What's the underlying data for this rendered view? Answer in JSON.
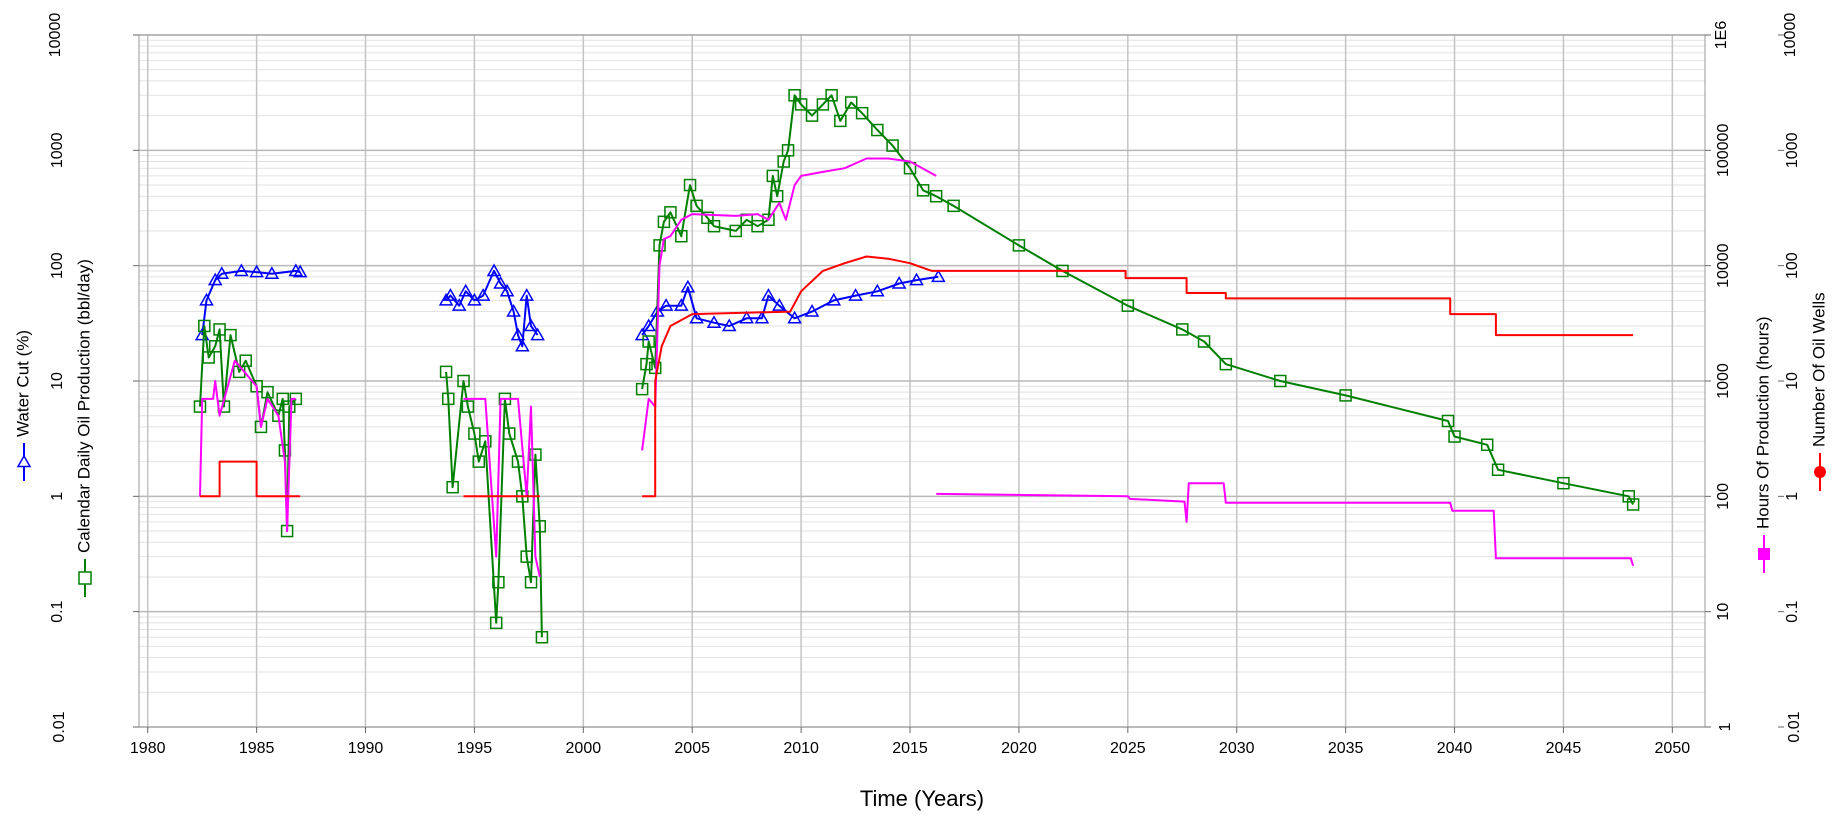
{
  "chart_data": {
    "type": "line",
    "log_scale": true,
    "grid": true,
    "xlabel": "Time (Years)",
    "xlim": [
      1979.6,
      2051.5
    ],
    "xticks": [
      1980,
      1985,
      1990,
      1995,
      2000,
      2005,
      2010,
      2015,
      2020,
      2025,
      2030,
      2035,
      2040,
      2045,
      2050
    ],
    "ylim": [
      0.01,
      10000
    ],
    "yticks": [
      0.01,
      0.1,
      1,
      10,
      100,
      1000,
      10000
    ],
    "y2lim": [
      1,
      1000000
    ],
    "y2ticks": [
      1,
      10,
      100,
      1000,
      10000,
      100000,
      {
        "value": 1000000,
        "label": "1E6"
      }
    ],
    "y3lim": [
      0.01,
      10000
    ],
    "y3ticks": [
      0.01,
      0.1,
      1,
      10,
      100,
      1000,
      10000
    ],
    "series": [
      {
        "name": "Water Cut (%)",
        "color": "#0000ff",
        "marker": "triangle-open",
        "marker_on_line": true,
        "axis": "y",
        "x": [
          1982.5,
          1982.7,
          1983.1,
          1983.4,
          1984.3,
          1985,
          1985.7,
          1986.8,
          1987,
          null,
          1993.7,
          1993.9,
          1994.3,
          1994.6,
          1995,
          1995.4,
          1995.9,
          1996.2,
          1996.5,
          1996.8,
          1997,
          1997.2,
          1997.4,
          1997.6,
          1997.9,
          null,
          2002.7,
          2003.0,
          2003.4,
          2003.8,
          2004.5,
          2004.8,
          2005.2,
          2006,
          2006.7,
          2007.5,
          2008.2,
          2008.5,
          2009,
          2009.7,
          2010.5,
          2011.5,
          2012.5,
          2013.5,
          2014.5,
          2015.3,
          2016.3
        ],
        "values": [
          25,
          50,
          75,
          85,
          90,
          88,
          85,
          90,
          88,
          null,
          50,
          55,
          45,
          60,
          50,
          55,
          90,
          70,
          60,
          40,
          25,
          20,
          55,
          30,
          25,
          null,
          25,
          30,
          40,
          45,
          45,
          65,
          35,
          32,
          30,
          35,
          35,
          55,
          45,
          35,
          40,
          50,
          55,
          60,
          70,
          75,
          80
        ]
      },
      {
        "name": "Calendar Daily Oil Production (bbl/day)",
        "color": "#008000",
        "marker": "square-open",
        "marker_on_line": true,
        "axis": "y",
        "x": [
          1982.4,
          1982.6,
          1982.8,
          1983.1,
          1983.3,
          1983.5,
          1983.8,
          1984.2,
          1984.5,
          1985,
          1985.2,
          1985.5,
          1986,
          1986.2,
          1986.3,
          1986.4,
          1986.5,
          1986.8,
          null,
          1993.7,
          1993.8,
          1994,
          1994.5,
          1994.7,
          1995,
          1995.2,
          1995.5,
          1996,
          1996.1,
          1996.4,
          1996.6,
          1997,
          1997.2,
          1997.4,
          1997.6,
          1997.8,
          1998,
          1998.1,
          null,
          2002.7,
          2002.9,
          2003,
          2003.3,
          2003.5,
          2003.7,
          2004,
          2004.5,
          2004.9,
          2005.2,
          2005.7,
          2006,
          2007,
          2007.5,
          2008,
          2008.5,
          2008.7,
          2008.9,
          2009.2,
          2009.4,
          2009.7,
          2010,
          2010.5,
          2011,
          2011.4,
          2011.8,
          2012.3,
          2012.8,
          2013.5,
          2014.2,
          2015,
          2015.6,
          2016.2,
          2017,
          2020,
          2022,
          2025,
          2027.5,
          2028.5,
          2029.5,
          2032,
          2035,
          2039.7,
          2040,
          2041.5,
          2042,
          2045,
          2048,
          2048.2
        ],
        "values": [
          6,
          30,
          16,
          20,
          28,
          6,
          25,
          12,
          15,
          9,
          4,
          8,
          5,
          7,
          2.5,
          0.5,
          6,
          7,
          null,
          12,
          7,
          1.2,
          10,
          6,
          3.5,
          2,
          3,
          0.08,
          0.18,
          7,
          3.5,
          2,
          1,
          0.3,
          0.18,
          2.3,
          0.55,
          0.06,
          null,
          8.5,
          14,
          22,
          13,
          150,
          240,
          290,
          180,
          500,
          330,
          260,
          220,
          200,
          250,
          220,
          250,
          600,
          400,
          800,
          1000,
          3000,
          2500,
          2000,
          2500,
          3000,
          1800,
          2600,
          2100,
          1500,
          1100,
          700,
          450,
          400,
          330,
          150,
          90,
          45,
          28,
          22,
          14,
          10,
          7.5,
          4.5,
          3.3,
          2.8,
          1.7,
          1.3,
          1.0,
          0.85
        ]
      },
      {
        "name": "Hours Of Production (hours)",
        "color": "#ff00ff",
        "marker": "square-filled",
        "marker_on_line": false,
        "axis": "y2",
        "x": [
          1982.4,
          1982.5,
          1983,
          1983.1,
          1983.3,
          1984,
          1985,
          1985.2,
          1985.5,
          1986,
          1986.3,
          1986.4,
          1986.6,
          1986.8,
          null,
          1994.5,
          1995.5,
          1996,
          1996.2,
          1997,
          1997.4,
          1997.6,
          1997.8,
          1998,
          null,
          2002.7,
          2003,
          2003.3,
          2003.5,
          2003.7,
          2004,
          2004.5,
          2005,
          2007,
          2008,
          2008.5,
          2009,
          2009.3,
          2009.7,
          2010,
          2011,
          2012,
          2013,
          2014,
          2015,
          2016.2,
          null,
          2016.2,
          2025,
          2025.1,
          2027.6,
          2027.7,
          2027.8,
          2029.4,
          2029.5,
          2039.8,
          2039.9,
          2041.8,
          2041.9,
          2048.1,
          2048.2
        ],
        "values": [
          100,
          700,
          700,
          1000,
          500,
          1500,
          900,
          400,
          700,
          500,
          200,
          50,
          700,
          700,
          null,
          700,
          700,
          30,
          700,
          700,
          100,
          600,
          30,
          20,
          null,
          250,
          700,
          600,
          10000,
          17000,
          18000,
          25000,
          28000,
          27000,
          28000,
          25000,
          35000,
          25000,
          50000,
          60000,
          65000,
          70000,
          85000,
          85000,
          80000,
          60000,
          null,
          105,
          100,
          95,
          90,
          60,
          130,
          130,
          88,
          88,
          75,
          75,
          29,
          29,
          25
        ]
      },
      {
        "name": "Number Of Oil Wells",
        "color": "#ff0000",
        "marker": "circle-filled",
        "marker_on_line": false,
        "axis": "y3",
        "x": [
          1982.4,
          1983.3,
          1983.3,
          1985,
          1985,
          1987,
          null,
          1994.5,
          1998,
          null,
          2002.7,
          2003.3,
          2003.3,
          2003.6,
          2004,
          2005,
          2009.5,
          2010,
          2011,
          2012,
          2013,
          2014,
          2015,
          2016,
          2024.9,
          2024.9,
          2027.7,
          2027.7,
          2029.5,
          2029.5,
          2039.8,
          2039.8,
          2041.9,
          2041.9,
          2048.2
        ],
        "values": [
          1,
          1,
          2,
          2,
          1,
          1,
          null,
          1,
          1,
          null,
          1,
          1,
          10,
          20,
          30,
          38,
          40,
          60,
          90,
          105,
          120,
          115,
          105,
          90,
          90,
          78,
          78,
          58,
          58,
          52,
          52,
          38,
          38,
          25,
          25
        ]
      }
    ]
  }
}
